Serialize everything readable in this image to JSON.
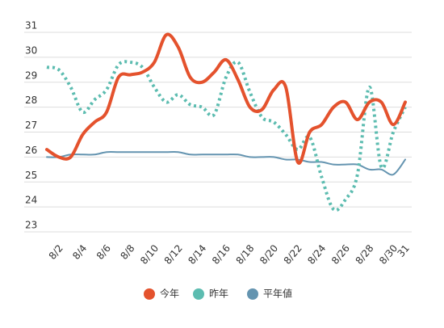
{
  "chart_data": {
    "type": "line",
    "categories": [
      null,
      "8/2",
      null,
      "8/4",
      null,
      "8/6",
      null,
      "8/8",
      null,
      "8/10",
      null,
      "8/12",
      null,
      "8/14",
      null,
      "8/16",
      null,
      "8/18",
      null,
      "8/20",
      null,
      "8/22",
      null,
      "8/24",
      null,
      "8/26",
      null,
      "8/28",
      null,
      "8/30",
      "31"
    ],
    "series": [
      {
        "name": "今年",
        "color": "#e4522d",
        "style": "solid",
        "values": [
          26.3,
          26.0,
          26.0,
          26.9,
          27.4,
          27.8,
          29.2,
          29.3,
          29.4,
          29.8,
          30.9,
          30.4,
          29.2,
          29.0,
          29.4,
          29.9,
          29.1,
          28.0,
          27.9,
          28.7,
          28.8,
          25.8,
          27.0,
          27.3,
          28.0,
          28.2,
          27.5,
          28.2,
          28.2,
          27.3,
          28.2
        ]
      },
      {
        "name": "昨年",
        "color": "#5cbcb0",
        "style": "dotted",
        "values": [
          29.6,
          29.5,
          28.8,
          27.8,
          28.3,
          28.7,
          29.7,
          29.8,
          29.6,
          28.8,
          28.2,
          28.5,
          28.1,
          28.0,
          27.7,
          29.2,
          29.8,
          28.6,
          27.6,
          27.4,
          26.9,
          26.3,
          26.8,
          25.2,
          23.9,
          24.3,
          25.3,
          28.8,
          25.6,
          27.0,
          28.0
        ]
      },
      {
        "name": "平年値",
        "color": "#6494b0",
        "style": "thin",
        "values": [
          26.0,
          26.0,
          26.1,
          26.1,
          26.1,
          26.2,
          26.2,
          26.2,
          26.2,
          26.2,
          26.2,
          26.2,
          26.1,
          26.1,
          26.1,
          26.1,
          26.1,
          26.0,
          26.0,
          26.0,
          25.9,
          25.9,
          25.8,
          25.8,
          25.7,
          25.7,
          25.7,
          25.5,
          25.5,
          25.3,
          25.9
        ]
      }
    ],
    "ylim": [
      23,
      31
    ],
    "yticks": [
      23,
      24,
      25,
      26,
      27,
      28,
      29,
      30,
      31
    ],
    "grid": true,
    "legend": "bottom"
  }
}
